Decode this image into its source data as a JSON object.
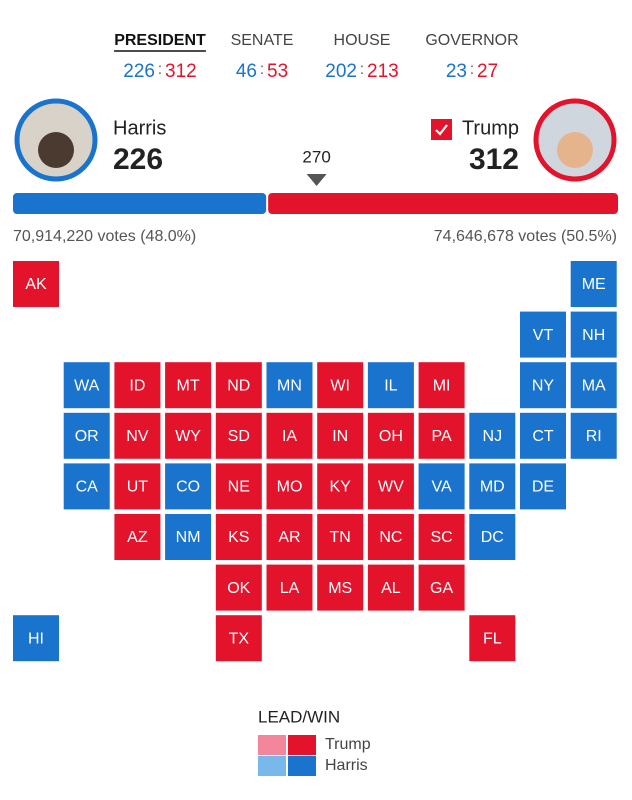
{
  "tabs": [
    {
      "label": "PRESIDENT",
      "dem": 226,
      "rep": 312,
      "active": true
    },
    {
      "label": "SENATE",
      "dem": 46,
      "rep": 53,
      "active": false
    },
    {
      "label": "HOUSE",
      "dem": 202,
      "rep": 213,
      "active": false
    },
    {
      "label": "GOVERNOR",
      "dem": 23,
      "rep": 27,
      "active": false
    }
  ],
  "separator": ":",
  "colors": {
    "dem": "#1a73cc",
    "rep": "#e3132c"
  },
  "candidates": {
    "dem": {
      "name": "Harris",
      "ev": 226,
      "votes": "70,914,220 votes (48.0%)"
    },
    "rep": {
      "name": "Trump",
      "ev": 312,
      "votes": "74,646,678 votes (50.5%)",
      "winner": true
    }
  },
  "threshold": 270,
  "map": {
    "rows": [
      [
        {
          "state": "AK",
          "winner": "Trump"
        },
        null,
        null,
        null,
        null,
        null,
        null,
        null,
        null,
        null,
        null,
        {
          "state": "ME",
          "winner": "Harris"
        }
      ],
      [
        null,
        null,
        null,
        null,
        null,
        null,
        null,
        null,
        null,
        null,
        {
          "state": "VT",
          "winner": "Harris"
        },
        {
          "state": "NH",
          "winner": "Harris"
        }
      ],
      [
        null,
        {
          "state": "WA",
          "winner": "Harris"
        },
        {
          "state": "ID",
          "winner": "Trump"
        },
        {
          "state": "MT",
          "winner": "Trump"
        },
        {
          "state": "ND",
          "winner": "Trump"
        },
        {
          "state": "MN",
          "winner": "Harris"
        },
        {
          "state": "WI",
          "winner": "Trump"
        },
        {
          "state": "IL",
          "winner": "Harris"
        },
        {
          "state": "MI",
          "winner": "Trump"
        },
        null,
        {
          "state": "NY",
          "winner": "Harris"
        },
        {
          "state": "MA",
          "winner": "Harris"
        }
      ],
      [
        null,
        {
          "state": "OR",
          "winner": "Harris"
        },
        {
          "state": "NV",
          "winner": "Trump"
        },
        {
          "state": "WY",
          "winner": "Trump"
        },
        {
          "state": "SD",
          "winner": "Trump"
        },
        {
          "state": "IA",
          "winner": "Trump"
        },
        {
          "state": "IN",
          "winner": "Trump"
        },
        {
          "state": "OH",
          "winner": "Trump"
        },
        {
          "state": "PA",
          "winner": "Trump"
        },
        {
          "state": "NJ",
          "winner": "Harris"
        },
        {
          "state": "CT",
          "winner": "Harris"
        },
        {
          "state": "RI",
          "winner": "Harris"
        }
      ],
      [
        null,
        {
          "state": "CA",
          "winner": "Harris"
        },
        {
          "state": "UT",
          "winner": "Trump"
        },
        {
          "state": "CO",
          "winner": "Harris"
        },
        {
          "state": "NE",
          "winner": "Trump"
        },
        {
          "state": "MO",
          "winner": "Trump"
        },
        {
          "state": "KY",
          "winner": "Trump"
        },
        {
          "state": "WV",
          "winner": "Trump"
        },
        {
          "state": "VA",
          "winner": "Harris"
        },
        {
          "state": "MD",
          "winner": "Harris"
        },
        {
          "state": "DE",
          "winner": "Harris"
        },
        null
      ],
      [
        null,
        null,
        {
          "state": "AZ",
          "winner": "Trump"
        },
        {
          "state": "NM",
          "winner": "Harris"
        },
        {
          "state": "KS",
          "winner": "Trump"
        },
        {
          "state": "AR",
          "winner": "Trump"
        },
        {
          "state": "TN",
          "winner": "Trump"
        },
        {
          "state": "NC",
          "winner": "Trump"
        },
        {
          "state": "SC",
          "winner": "Trump"
        },
        {
          "state": "DC",
          "winner": "Harris"
        },
        null,
        null
      ],
      [
        null,
        null,
        null,
        null,
        {
          "state": "OK",
          "winner": "Trump"
        },
        {
          "state": "LA",
          "winner": "Trump"
        },
        {
          "state": "MS",
          "winner": "Trump"
        },
        {
          "state": "AL",
          "winner": "Trump"
        },
        {
          "state": "GA",
          "winner": "Trump"
        },
        null,
        null,
        null
      ],
      [
        {
          "state": "HI",
          "winner": "Harris"
        },
        null,
        null,
        null,
        {
          "state": "TX",
          "winner": "Trump"
        },
        null,
        null,
        null,
        null,
        {
          "state": "FL",
          "winner": "Trump"
        },
        null,
        null
      ]
    ]
  },
  "legend": {
    "title": "LEAD/WIN",
    "entries": [
      {
        "name": "Trump",
        "lead_color": "#f2879b",
        "win_color": "#e3132c"
      },
      {
        "name": "Harris",
        "lead_color": "#79b8ea",
        "win_color": "#1a73cc"
      }
    ]
  }
}
